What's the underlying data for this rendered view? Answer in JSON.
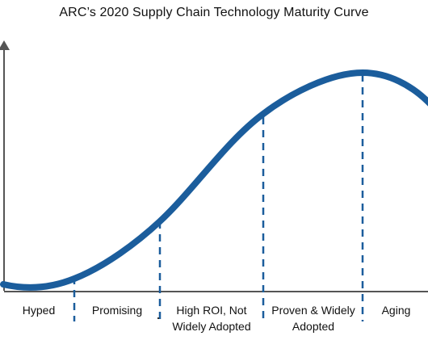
{
  "title": "ARC’s 2020 Supply Chain Technology Maturity Curve",
  "stages": [
    {
      "key": "hyped",
      "lines": [
        "Hyped"
      ]
    },
    {
      "key": "promising",
      "lines": [
        "Promising"
      ]
    },
    {
      "key": "high-roi",
      "lines": [
        "High ROI, Not",
        "Widely Adopted"
      ]
    },
    {
      "key": "proven",
      "lines": [
        "Proven & Widely",
        "Adopted"
      ]
    },
    {
      "key": "aging",
      "lines": [
        "Aging"
      ]
    }
  ],
  "colors": {
    "curve": "#1b5d9c",
    "divider": "#1b5d9c",
    "axis": "#555555",
    "text": "#111111"
  }
}
